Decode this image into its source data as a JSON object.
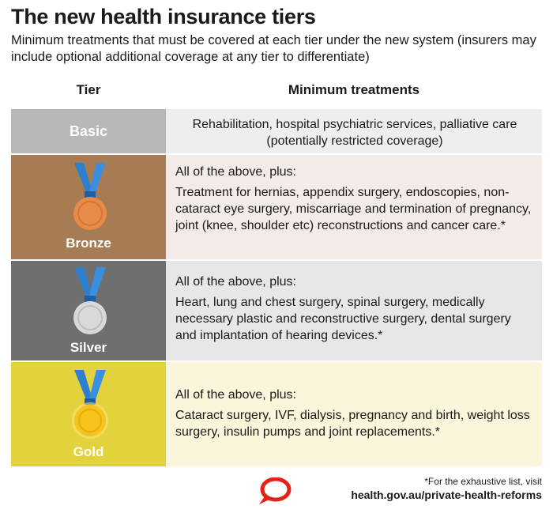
{
  "header": {
    "title": "The new health insurance tiers",
    "subtitle": "Minimum treatments that must be covered at each tier under the new system (insurers may include optional additional coverage at any tier to differentiate)"
  },
  "columns": {
    "tier": "Tier",
    "treatments": "Minimum treatments"
  },
  "tiers": [
    {
      "name": "Basic",
      "treatments": "Rehabilitation, hospital psychiatric services, palliative care (potentially restricted coverage)"
    },
    {
      "name": "Bronze",
      "intro": "All of the above, plus:",
      "treatments": "Treatment for hernias, appendix surgery, endoscopies, non-cataract eye surgery, miscarriage and termination of pregnancy, joint (knee, shoulder etc) reconstructions and cancer care.*",
      "medal_color": "#e88a48"
    },
    {
      "name": "Silver",
      "intro": "All of the above, plus:",
      "treatments": "Heart, lung and chest surgery, spinal surgery, medically necessary plastic and reconstructive surgery, dental surgery and implantation of hearing devices.*",
      "medal_color": "#d9d9d9"
    },
    {
      "name": "Gold",
      "intro": "All of the above, plus:",
      "treatments": "Cataract surgery, IVF, dialysis, pregnancy and birth, weight loss surgery, insulin pumps and joint replacements.*",
      "medal_color": "#f6c21c"
    }
  ],
  "footer": {
    "note": "*For the exhaustive list, visit",
    "link": "health.gov.au/private-health-reforms",
    "logo_icon": "speech-bubble-logo-icon"
  },
  "colors": {
    "ribbon": "#2f7fd1",
    "logo": "#e2231a"
  }
}
